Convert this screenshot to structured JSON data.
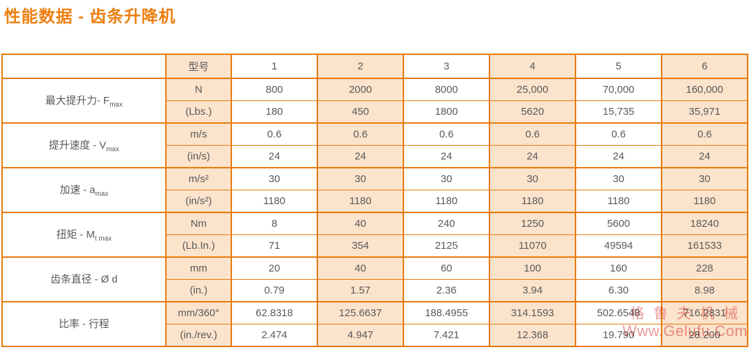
{
  "title": "性能数据 - 齿条升降机",
  "colors": {
    "accent_orange": "#e8780a",
    "title_orange": "#ed7f10",
    "fill_peach": "#fbe3cc",
    "text_gray": "#595959",
    "watermark_red": "#dd4848"
  },
  "table": {
    "corner": "",
    "model_header": "型号",
    "models": [
      "1",
      "2",
      "3",
      "4",
      "5",
      "6"
    ],
    "groups": [
      {
        "label": "最大提升力- F",
        "label_sub": "max",
        "rows": [
          {
            "unit": "N",
            "values": [
              "800",
              "2000",
              "8000",
              "25,000",
              "70,000",
              "160,000"
            ]
          },
          {
            "unit": "(Lbs.)",
            "values": [
              "180",
              "450",
              "1800",
              "5620",
              "15,735",
              "35,971"
            ]
          }
        ]
      },
      {
        "label": "提升速度 - V",
        "label_sub": "max",
        "rows": [
          {
            "unit": "m/s",
            "values": [
              "0.6",
              "0.6",
              "0.6",
              "0.6",
              "0.6",
              "0.6"
            ]
          },
          {
            "unit": "(in/s)",
            "values": [
              "24",
              "24",
              "24",
              "24",
              "24",
              "24"
            ]
          }
        ]
      },
      {
        "label": "加速 - a",
        "label_sub": "max",
        "rows": [
          {
            "unit": "m/s²",
            "values": [
              "30",
              "30",
              "30",
              "30",
              "30",
              "30"
            ]
          },
          {
            "unit": "(in/s²)",
            "values": [
              "1180",
              "1180",
              "1180",
              "1180",
              "1180",
              "1180"
            ]
          }
        ]
      },
      {
        "label": "扭矩 - M",
        "label_sub": "t max",
        "rows": [
          {
            "unit": "Nm",
            "values": [
              "8",
              "40",
              "240",
              "1250",
              "5600",
              "18240"
            ]
          },
          {
            "unit": "(Lb.In.)",
            "values": [
              "71",
              "354",
              "2125",
              "11070",
              "49594",
              "161533"
            ]
          }
        ]
      },
      {
        "label": "齿条直径 - Ø d",
        "label_sub": "",
        "rows": [
          {
            "unit": "mm",
            "values": [
              "20",
              "40",
              "60",
              "100",
              "160",
              "228"
            ]
          },
          {
            "unit": "(in.)",
            "values": [
              "0.79",
              "1.57",
              "2.36",
              "3.94",
              "6.30",
              "8.98"
            ]
          }
        ]
      },
      {
        "label": "比率 - 行程",
        "label_sub": "",
        "rows": [
          {
            "unit": "mm/360°",
            "values": [
              "62.8318",
              "125.6637",
              "188.4955",
              "314.1593",
              "502.6548",
              "716.2831"
            ]
          },
          {
            "unit": "(in./rev.)",
            "values": [
              "2.474",
              "4.947",
              "7.421",
              "12.368",
              "19.790",
              "28.200"
            ]
          }
        ]
      }
    ]
  },
  "watermark": {
    "line1": "格鲁夫机械",
    "line2": "Www.Gelufu.Com"
  }
}
